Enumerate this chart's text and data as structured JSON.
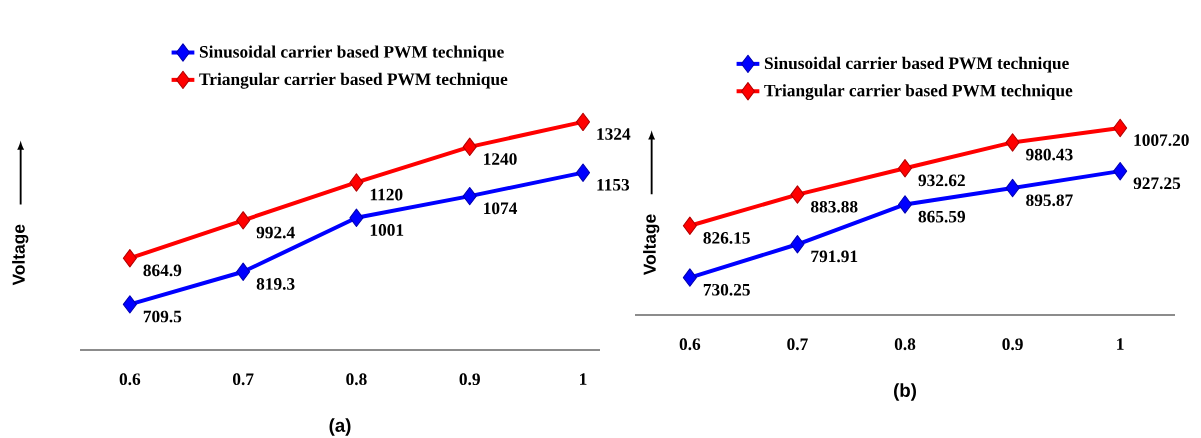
{
  "chart_data": [
    {
      "type": "line",
      "xlabel": "(a)",
      "ylabel": "Voltage",
      "categories": [
        "0.6",
        "0.7",
        "0.8",
        "0.9",
        "1"
      ],
      "legend": "top",
      "marker": "diamond",
      "series": [
        {
          "name": "Sinusoidal carrier based PWM technique",
          "color": "#0000ff",
          "values": [
            709.5,
            819.3,
            1001,
            1074,
            1153
          ],
          "value_labels": [
            "709.5",
            "819.3",
            "1001",
            "1074",
            "1153"
          ]
        },
        {
          "name": "Triangular carrier based PWM technique",
          "color": "#ff0000",
          "values": [
            864.9,
            992.4,
            1120,
            1240,
            1324
          ],
          "value_labels": [
            "864.9",
            "992.4",
            "1120",
            "1240",
            "1324"
          ]
        }
      ]
    },
    {
      "type": "line",
      "xlabel": "(b)",
      "ylabel": "Voltage",
      "categories": [
        "0.6",
        "0.7",
        "0.8",
        "0.9",
        "1"
      ],
      "legend": "top",
      "marker": "diamond",
      "series": [
        {
          "name": "Sinusoidal carrier based PWM technique",
          "color": "#0000ff",
          "values": [
            730.25,
            791.91,
            865.59,
            895.87,
            927.25
          ],
          "value_labels": [
            "730.25",
            "791.91",
            "865.59",
            "895.87",
            "927.25"
          ]
        },
        {
          "name": "Triangular carrier based PWM technique",
          "color": "#ff0000",
          "values": [
            826.15,
            883.88,
            932.62,
            980.43,
            1007.2
          ],
          "value_labels": [
            "826.15",
            "883.88",
            "932.62",
            "980.43",
            "1007.20"
          ]
        }
      ]
    }
  ]
}
